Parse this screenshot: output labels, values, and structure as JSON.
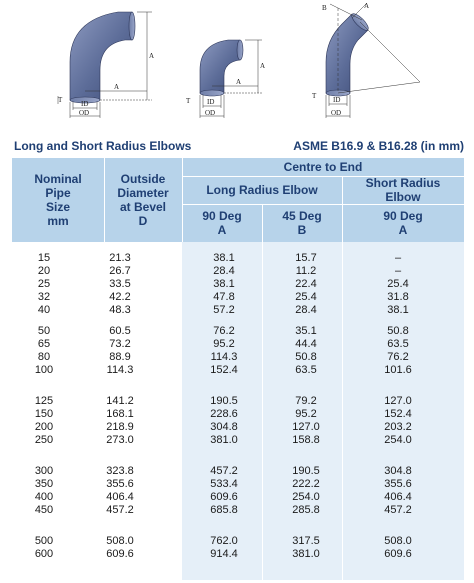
{
  "diagrams": {
    "labels": {
      "a": "A",
      "b": "B",
      "t": "T",
      "id": "ID",
      "od": "OD"
    }
  },
  "caption": {
    "left": "Long and Short Radius Elbows",
    "right": "ASME B16.9 & B16.28 (in mm)"
  },
  "table": {
    "headers": {
      "nominal": [
        "Nominal",
        "Pipe",
        "Size",
        "mm"
      ],
      "outside": [
        "Outside",
        "Diameter",
        "at Bevel",
        "D"
      ],
      "centre": "Centre to End",
      "long": "Long Radius Elbow",
      "short": [
        "Short Radius",
        "Elbow"
      ],
      "lr90": [
        "90 Deg",
        "A"
      ],
      "lr45": [
        "45 Deg",
        "B"
      ],
      "sr90": [
        "90 Deg",
        "A"
      ]
    },
    "groups": [
      [
        [
          "15",
          "21.3",
          "38.1",
          "15.7",
          "–"
        ],
        [
          "20",
          "26.7",
          "28.4",
          "11.2",
          "–"
        ],
        [
          "25",
          "33.5",
          "38.1",
          "22.4",
          "25.4"
        ],
        [
          "32",
          "42.2",
          "47.8",
          "25.4",
          "31.8"
        ],
        [
          "40",
          "48.3",
          "57.2",
          "28.4",
          "38.1"
        ]
      ],
      [
        [
          "50",
          "60.5",
          "76.2",
          "35.1",
          "50.8"
        ],
        [
          "65",
          "73.2",
          "95.2",
          "44.4",
          "63.5"
        ],
        [
          "80",
          "88.9",
          "114.3",
          "50.8",
          "76.2"
        ],
        [
          "100",
          "114.3",
          "152.4",
          "63.5",
          "101.6"
        ]
      ],
      [
        [
          "125",
          "141.2",
          "190.5",
          "79.2",
          "127.0"
        ],
        [
          "150",
          "168.1",
          "228.6",
          "95.2",
          "152.4"
        ],
        [
          "200",
          "218.9",
          "304.8",
          "127.0",
          "203.2"
        ],
        [
          "250",
          "273.0",
          "381.0",
          "158.8",
          "254.0"
        ]
      ],
      [
        [
          "300",
          "323.8",
          "457.2",
          "190.5",
          "304.8"
        ],
        [
          "350",
          "355.6",
          "533.4",
          "222.2",
          "355.6"
        ],
        [
          "400",
          "406.4",
          "609.6",
          "254.0",
          "406.4"
        ],
        [
          "450",
          "457.2",
          "685.8",
          "285.8",
          "457.2"
        ]
      ],
      [
        [
          "500",
          "508.0",
          "762.0",
          "317.5",
          "508.0"
        ],
        [
          "600",
          "609.6",
          "914.4",
          "381.0",
          "609.6"
        ]
      ]
    ]
  },
  "colors": {
    "header_bg": "#b7d3ea",
    "band_bg": "#e5eff8",
    "title_text": "#1f3f73",
    "elbow_fill": "#5c6c98"
  }
}
